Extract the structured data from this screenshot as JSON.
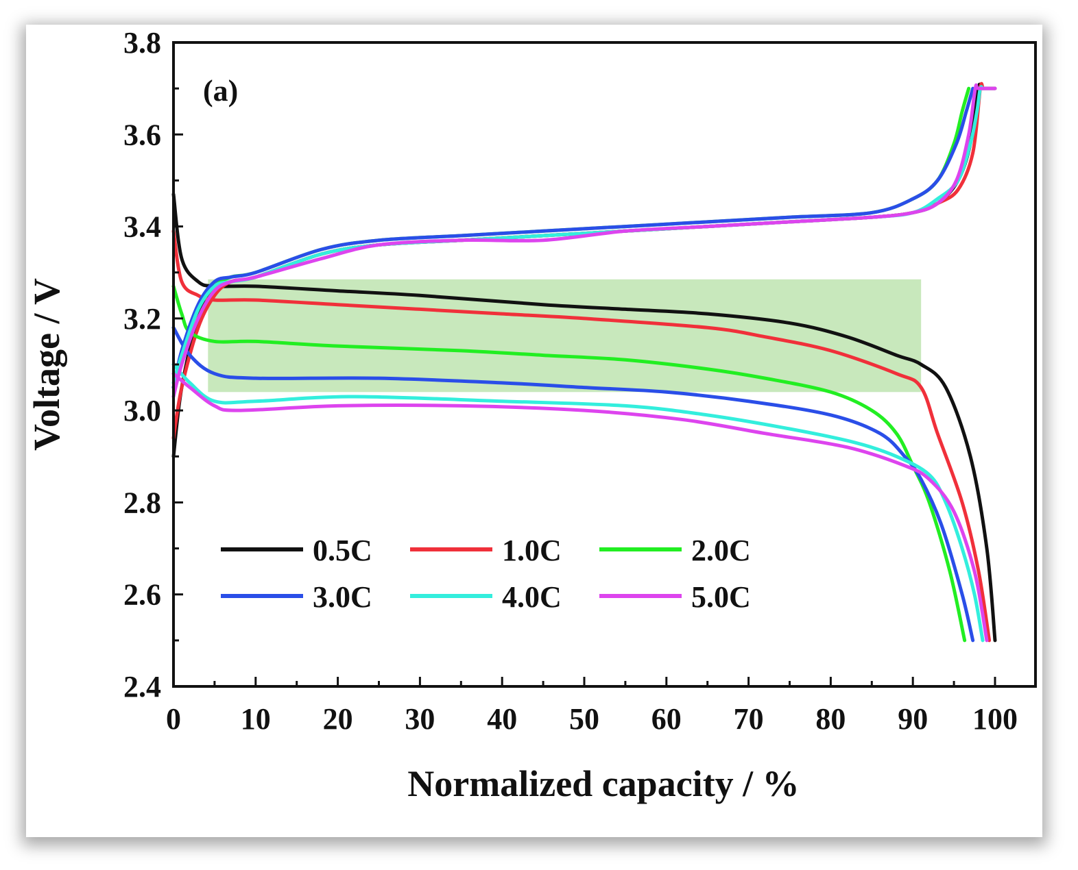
{
  "chart_data": {
    "type": "line",
    "panel_label": "(a)",
    "xlabel": "Normalized capacity / %",
    "ylabel": "Voltage / V",
    "xlim": [
      0,
      105
    ],
    "ylim": [
      2.4,
      3.8
    ],
    "xticks": [
      "0",
      "10",
      "20",
      "30",
      "40",
      "50",
      "60",
      "70",
      "80",
      "90",
      "100"
    ],
    "yticks": [
      "2.4",
      "2.6",
      "2.8",
      "3.0",
      "3.2",
      "3.4",
      "3.6",
      "3.8"
    ],
    "grid": false,
    "legend_placement": "lower-left",
    "highlight_region": {
      "x": [
        4.2,
        91
      ],
      "y": [
        3.04,
        3.285
      ],
      "color": "#c8e8bc"
    },
    "series": [
      {
        "name": "0.5C",
        "color": "#111111",
        "discharge": {
          "x": [
            0,
            1,
            3,
            5,
            10,
            20,
            30,
            45,
            55,
            65,
            75,
            82,
            88,
            91,
            94,
            97,
            99,
            100
          ],
          "y": [
            3.47,
            3.33,
            3.28,
            3.27,
            3.27,
            3.26,
            3.25,
            3.23,
            3.22,
            3.21,
            3.19,
            3.16,
            3.12,
            3.1,
            3.05,
            2.9,
            2.7,
            2.5
          ]
        },
        "charge": {
          "x": [
            0,
            1,
            3,
            5,
            7,
            10,
            18,
            25,
            35,
            45,
            55,
            65,
            75,
            85,
            90,
            93,
            95.5,
            97,
            98,
            98.3,
            100
          ],
          "y": [
            2.9,
            3.05,
            3.2,
            3.26,
            3.28,
            3.29,
            3.34,
            3.36,
            3.37,
            3.38,
            3.39,
            3.4,
            3.41,
            3.42,
            3.43,
            3.45,
            3.5,
            3.58,
            3.7,
            3.7,
            3.7
          ]
        }
      },
      {
        "name": "1.0C",
        "color": "#f0303a",
        "discharge": {
          "x": [
            0,
            1,
            3,
            5,
            10,
            20,
            30,
            40,
            50,
            65,
            72,
            80,
            88,
            91,
            93,
            96,
            98,
            99.3
          ],
          "y": [
            3.39,
            3.28,
            3.25,
            3.24,
            3.24,
            3.23,
            3.22,
            3.21,
            3.2,
            3.18,
            3.16,
            3.13,
            3.08,
            3.05,
            2.95,
            2.8,
            2.65,
            2.5
          ]
        },
        "charge": {
          "x": [
            0,
            1,
            3,
            5,
            7,
            10,
            18,
            25,
            35,
            45,
            55,
            65,
            75,
            85,
            90,
            93,
            95.5,
            97.3,
            98.2,
            98.5
          ],
          "y": [
            2.94,
            3.05,
            3.18,
            3.25,
            3.28,
            3.29,
            3.34,
            3.36,
            3.37,
            3.38,
            3.39,
            3.4,
            3.41,
            3.42,
            3.43,
            3.45,
            3.48,
            3.56,
            3.7,
            3.7
          ]
        }
      },
      {
        "name": "2.0C",
        "color": "#22ee22",
        "discharge": {
          "x": [
            0,
            1,
            2,
            5,
            10,
            20,
            35,
            45,
            55,
            65,
            72,
            80,
            85,
            88,
            90,
            92,
            94.5,
            96.3
          ],
          "y": [
            3.27,
            3.21,
            3.17,
            3.15,
            3.15,
            3.14,
            3.13,
            3.12,
            3.11,
            3.09,
            3.07,
            3.04,
            3.0,
            2.95,
            2.88,
            2.8,
            2.65,
            2.5
          ]
        },
        "charge": {
          "x": [
            0,
            1,
            3,
            5,
            7,
            10,
            18,
            25,
            35,
            45,
            55,
            65,
            75,
            85,
            90,
            93,
            95,
            96,
            96.8
          ],
          "y": [
            3.05,
            3.12,
            3.22,
            3.27,
            3.29,
            3.3,
            3.35,
            3.37,
            3.38,
            3.39,
            3.4,
            3.41,
            3.42,
            3.43,
            3.46,
            3.5,
            3.58,
            3.65,
            3.7
          ]
        }
      },
      {
        "name": "3.0C",
        "color": "#2a4ee8",
        "discharge": {
          "x": [
            0,
            2,
            5,
            10,
            25,
            40,
            50,
            60,
            70,
            80,
            86,
            89,
            91,
            93.5,
            96,
            97.3
          ],
          "y": [
            3.18,
            3.12,
            3.08,
            3.07,
            3.07,
            3.06,
            3.05,
            3.04,
            3.02,
            2.99,
            2.95,
            2.9,
            2.85,
            2.75,
            2.6,
            2.5
          ]
        },
        "charge": {
          "x": [
            0,
            1,
            3,
            5,
            7,
            10,
            18,
            25,
            35,
            45,
            55,
            65,
            75,
            85,
            90,
            93,
            95.3,
            96.5,
            97.3
          ],
          "y": [
            3.05,
            3.13,
            3.23,
            3.28,
            3.29,
            3.3,
            3.35,
            3.37,
            3.38,
            3.39,
            3.4,
            3.41,
            3.42,
            3.43,
            3.46,
            3.5,
            3.58,
            3.65,
            3.7
          ]
        }
      },
      {
        "name": "4.0C",
        "color": "#33eedd",
        "discharge": {
          "x": [
            0,
            2,
            5,
            10,
            22,
            40,
            55,
            65,
            75,
            83,
            88,
            92,
            94,
            96,
            97.5,
            98.5
          ],
          "y": [
            3.1,
            3.06,
            3.02,
            3.02,
            3.03,
            3.02,
            3.01,
            2.99,
            2.96,
            2.93,
            2.9,
            2.86,
            2.8,
            2.7,
            2.6,
            2.5
          ]
        },
        "charge": {
          "x": [
            0,
            1,
            3,
            5,
            7,
            10,
            18,
            25,
            35,
            45,
            55,
            65,
            75,
            85,
            90,
            93,
            95.5,
            97,
            97.8,
            98.2,
            98.5
          ],
          "y": [
            3.06,
            3.12,
            3.22,
            3.27,
            3.28,
            3.29,
            3.34,
            3.36,
            3.37,
            3.38,
            3.39,
            3.4,
            3.41,
            3.42,
            3.43,
            3.46,
            3.5,
            3.58,
            3.65,
            3.7,
            3.7
          ]
        }
      },
      {
        "name": "5.0C",
        "color": "#dd44ee",
        "discharge": {
          "x": [
            0,
            2,
            5,
            8,
            20,
            35,
            50,
            62,
            72,
            82,
            89,
            92,
            95,
            97.5,
            99
          ],
          "y": [
            3.08,
            3.05,
            3.01,
            3.0,
            3.01,
            3.01,
            3.0,
            2.98,
            2.95,
            2.92,
            2.88,
            2.85,
            2.78,
            2.65,
            2.5
          ]
        },
        "charge": {
          "x": [
            0,
            1,
            3,
            5,
            7,
            10,
            18,
            25,
            35,
            45,
            55,
            65,
            75,
            85,
            90,
            93,
            95.3,
            96.8,
            97.6,
            98,
            100
          ],
          "y": [
            3.03,
            3.1,
            3.2,
            3.26,
            3.28,
            3.29,
            3.33,
            3.36,
            3.37,
            3.37,
            3.39,
            3.4,
            3.41,
            3.42,
            3.43,
            3.45,
            3.5,
            3.6,
            3.7,
            3.7,
            3.7
          ]
        }
      }
    ]
  }
}
